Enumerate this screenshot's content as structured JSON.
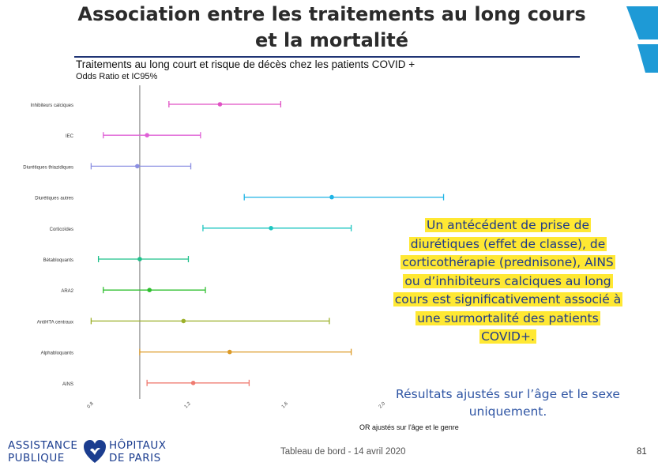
{
  "slide": {
    "title_line1": "Association entre les traitements au long cours",
    "title_line2": "et la mortalité",
    "footer": "Tableau de bord -  14 avril 2020",
    "page_number": "81",
    "brand_color": "#1f3474",
    "accent_blue": "#1e9ad6"
  },
  "logo": {
    "left_line1": "ASSISTANCE",
    "left_line2": "PUBLIQUE",
    "right_line1": "HÔPITAUX",
    "right_line2": "DE PARIS",
    "icon": "heart-icon"
  },
  "callout": {
    "lines": [
      "Un antécédent de prise de",
      "diurétiques (effet de classe), de",
      "corticothérapie (prednisone), AINS",
      "ou d’inhibiteurs calciques au long",
      "cours est significativement associé à",
      "une surmortalité des patients",
      "COVID+."
    ],
    "highlight_color": "#ffe833"
  },
  "note": {
    "line1": "Résultats ajustés sur l’âge et le sexe",
    "line2": "uniquement."
  },
  "chart_data": {
    "type": "forest",
    "title": "Traitements au long court et risque de décès chez les patients COVID +",
    "subtitle": "Odds Ratio et IC95%",
    "xlabel": "OR ajustés sur l'âge et le genre",
    "xlim": [
      0.75,
      2.05
    ],
    "xticks": [
      "0.8",
      "1.2",
      "1.6",
      "2.0"
    ],
    "xtick_values": [
      0.8,
      1.2,
      1.6,
      2.0
    ],
    "reference_line": 1.0,
    "grid": false,
    "series": [
      {
        "label": "Inhibiteurs calciques",
        "or": 1.33,
        "low": 1.12,
        "high": 1.58,
        "color": "#e052c4"
      },
      {
        "label": "IEC",
        "or": 1.03,
        "low": 0.85,
        "high": 1.25,
        "color": "#df60d6"
      },
      {
        "label": "Diurétiques thiazidiques",
        "or": 0.99,
        "low": 0.8,
        "high": 1.21,
        "color": "#8c8fe2"
      },
      {
        "label": "Diurétiques autres",
        "or": 1.79,
        "low": 1.43,
        "high": 2.25,
        "color": "#1fb4e6"
      },
      {
        "label": "Corticoïdes",
        "or": 1.54,
        "low": 1.26,
        "high": 1.87,
        "color": "#1ec6c0"
      },
      {
        "label": "Bétabloquants",
        "or": 1.0,
        "low": 0.83,
        "high": 1.2,
        "color": "#1ec08a"
      },
      {
        "label": "ARA2",
        "or": 1.04,
        "low": 0.85,
        "high": 1.27,
        "color": "#2fbf2f"
      },
      {
        "label": "AntiHTA centraux",
        "or": 1.18,
        "low": 0.8,
        "high": 1.78,
        "color": "#9cb02a"
      },
      {
        "label": "Alphabloquants",
        "or": 1.37,
        "low": 1.0,
        "high": 1.87,
        "color": "#dc9a26"
      },
      {
        "label": "AINS",
        "or": 1.22,
        "low": 1.03,
        "high": 1.45,
        "color": "#ef7b70"
      }
    ]
  }
}
